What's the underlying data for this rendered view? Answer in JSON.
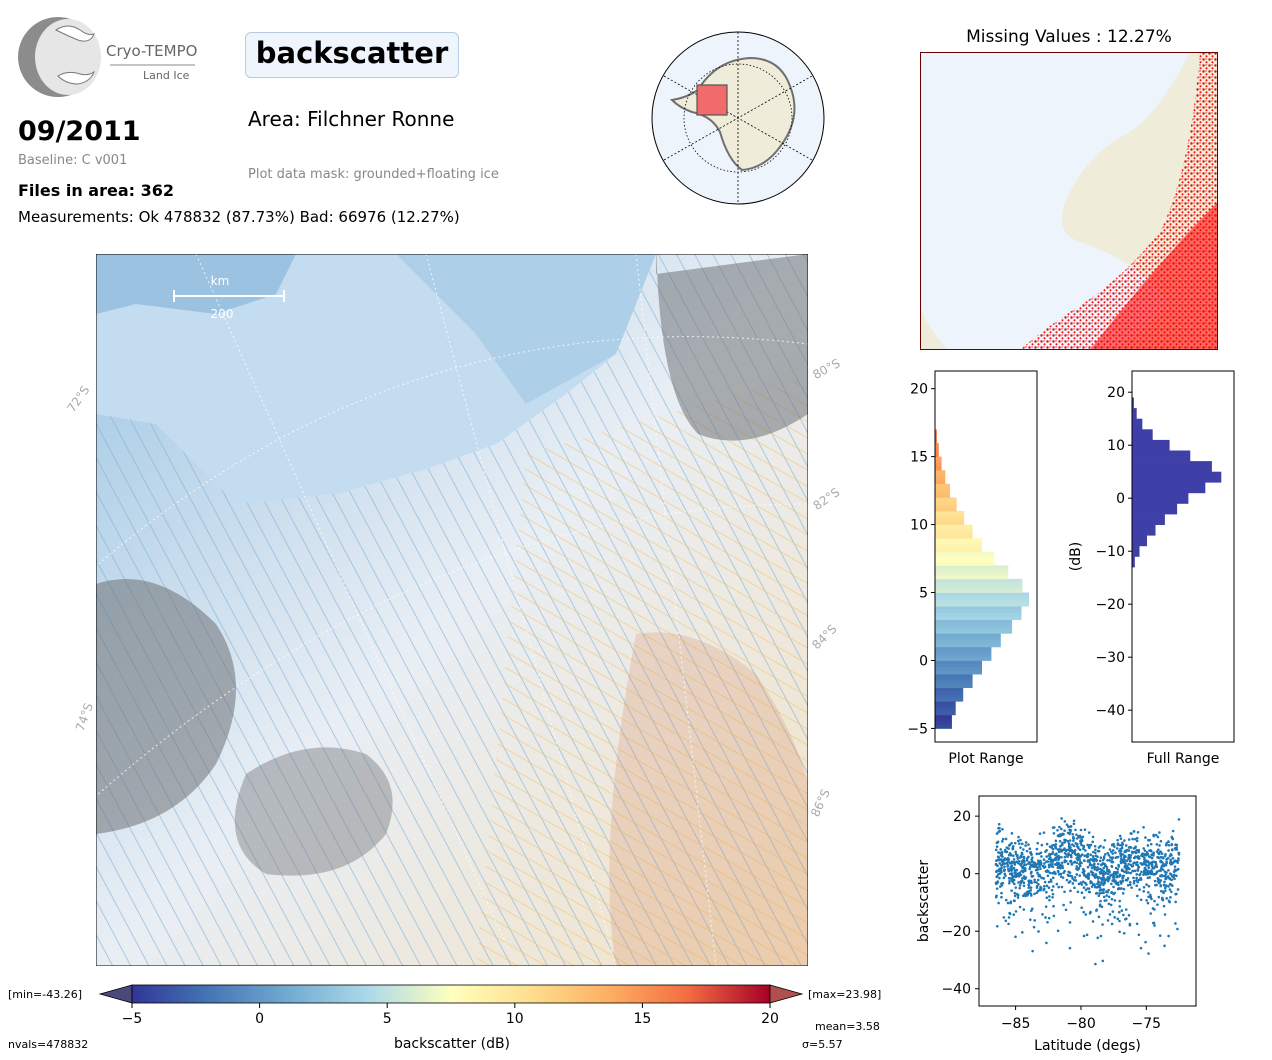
{
  "header": {
    "logo_title": "Cryo-TEMPO",
    "logo_subtitle": "Land Ice",
    "date": "09/2011",
    "baseline": "Baseline: C v001",
    "files": "Files in area: 362",
    "measurements": "Measurements: Ok 478832 (87.73%) Bad: 66976 (12.27%)",
    "parameter": "backscatter",
    "area": "Area: Filchner Ronne",
    "mask": "Plot data mask: grounded+floating ice"
  },
  "map": {
    "scale_unit": "km",
    "scale_value": "200",
    "lat_labels": [
      "72°S",
      "74°S",
      "80°S",
      "82°S",
      "84°S",
      "86°S"
    ]
  },
  "colorbar": {
    "min_label": "[min=-43.26]",
    "max_label": "[max=23.98]",
    "ticks": [
      "−5",
      "0",
      "5",
      "10",
      "15",
      "20"
    ],
    "label": "backscatter (dB)",
    "nvals": "nvals=478832",
    "mean": "mean=3.58",
    "sigma": "σ=5.57"
  },
  "missing": {
    "title": "Missing Values : 12.27%"
  },
  "chart_data": [
    {
      "type": "bar",
      "name": "plot-range-histogram",
      "orientation": "horizontal",
      "xlabel": "Plot Range",
      "ylabel": "",
      "ylim": [
        -6,
        21.3
      ],
      "y_ticks": [
        "−5",
        "0",
        "5",
        "10",
        "15",
        "20"
      ],
      "bins_center": [
        -4.5,
        -3.5,
        -2.5,
        -1.5,
        -0.5,
        0.5,
        1.5,
        2.5,
        3.5,
        4.5,
        5.5,
        6.5,
        7.5,
        8.5,
        9.5,
        10.5,
        11.5,
        12.5,
        13.5,
        14.5,
        15.5,
        16.5
      ],
      "values": [
        0.18,
        0.22,
        0.3,
        0.4,
        0.5,
        0.6,
        0.7,
        0.82,
        0.92,
        1.0,
        0.93,
        0.78,
        0.63,
        0.5,
        0.4,
        0.31,
        0.23,
        0.16,
        0.11,
        0.07,
        0.04,
        0.02
      ],
      "colormap": "RdYlBu_r"
    },
    {
      "type": "bar",
      "name": "full-range-histogram",
      "orientation": "horizontal",
      "xlabel": "Full Range",
      "ylabel": "(dB)",
      "ylim": [
        -46,
        24
      ],
      "y_ticks": [
        "20",
        "10",
        "0",
        "−10",
        "−20",
        "−30",
        "−40"
      ],
      "bins_center": [
        -12,
        -10,
        -8,
        -6,
        -4,
        -2,
        0,
        2,
        4,
        6,
        8,
        10,
        12,
        14,
        16,
        18
      ],
      "values": [
        0.03,
        0.08,
        0.16,
        0.25,
        0.35,
        0.48,
        0.6,
        0.78,
        0.95,
        0.85,
        0.62,
        0.4,
        0.22,
        0.11,
        0.05,
        0.02
      ],
      "color": "#3f3fa8"
    },
    {
      "type": "scatter",
      "name": "latitude-scatter",
      "xlabel": "Latitude (degs)",
      "ylabel": "backscatter",
      "xlim": [
        -87.8,
        -71.2
      ],
      "ylim": [
        -46,
        27
      ],
      "x_ticks": [
        "−85",
        "−80",
        "−75"
      ],
      "y_ticks": [
        "20",
        "0",
        "−20",
        "−40"
      ],
      "x_range": [
        -86.5,
        -72.5
      ],
      "y_mean_approx": 3.6,
      "color": "#1f77b4"
    }
  ]
}
